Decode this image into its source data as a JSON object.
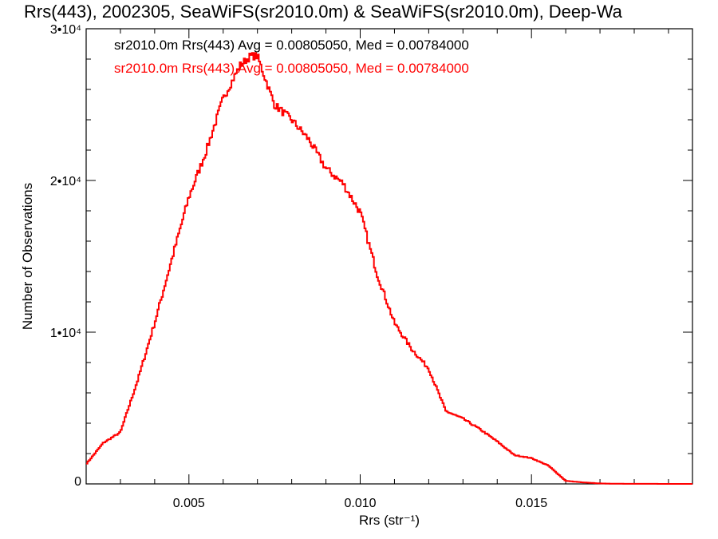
{
  "chart_data": {
    "type": "line",
    "title": "Rrs(443), 2002305, SeaWiFS(sr2010.0m) & SeaWiFS(sr2010.0m), Deep-Wa",
    "xlabel": "Rrs (str⁻¹)",
    "ylabel": "Number of Observations",
    "xlim": [
      0.002,
      0.0197
    ],
    "ylim": [
      0,
      30000
    ],
    "x_ticks": [
      {
        "value": 0.005,
        "label": "0.005"
      },
      {
        "value": 0.01,
        "label": "0.010"
      },
      {
        "value": 0.015,
        "label": "0.015"
      }
    ],
    "y_ticks": [
      {
        "value": 0,
        "label": "0"
      },
      {
        "value": 10000,
        "label": "1•10⁴"
      },
      {
        "value": 20000,
        "label": "2•10⁴"
      },
      {
        "value": 30000,
        "label": "3•10⁴"
      }
    ],
    "annotations": [
      {
        "text": "sr2010.0m Rrs(443) Avg = 0.00805050, Med = 0.00784000",
        "color": "#000000"
      },
      {
        "text": "sr2010.0m Rrs(443) Avg = 0.00805050, Med = 0.00784000",
        "color": "#ff0000"
      }
    ],
    "series": [
      {
        "color": "#ff0000",
        "x": [
          0.002,
          0.0025,
          0.003,
          0.0035,
          0.004,
          0.0045,
          0.005,
          0.0055,
          0.006,
          0.0065,
          0.0068,
          0.007,
          0.0072,
          0.0075,
          0.008,
          0.0085,
          0.009,
          0.0095,
          0.01,
          0.0105,
          0.011,
          0.0115,
          0.012,
          0.0125,
          0.013,
          0.0135,
          0.014,
          0.0145,
          0.015,
          0.0155,
          0.016,
          0.0165,
          0.017,
          0.0175,
          0.018,
          0.0185,
          0.019,
          0.0197
        ],
        "y": [
          1300,
          2700,
          3400,
          6800,
          10600,
          14800,
          18900,
          21900,
          25400,
          27600,
          28200,
          28200,
          26900,
          25000,
          24000,
          22700,
          20800,
          19800,
          17900,
          13800,
          10600,
          8900,
          7600,
          4800,
          4300,
          3600,
          2800,
          1900,
          1700,
          1200,
          200,
          100,
          30,
          10,
          5,
          3,
          2,
          0
        ]
      }
    ]
  }
}
